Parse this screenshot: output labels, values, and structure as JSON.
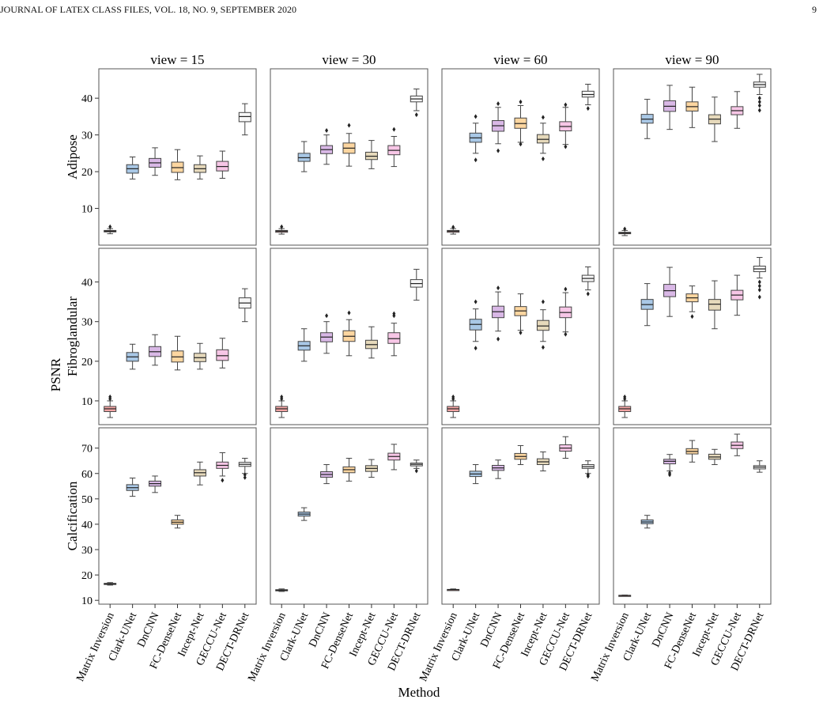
{
  "header": {
    "left": "JOURNAL OF LATEX CLASS FILES, VOL. 18, NO. 9, SEPTEMBER 2020",
    "page": "9"
  },
  "chart_data": {
    "type": "box",
    "x_label": "Method",
    "y_label_outer": "PSNR",
    "methods": [
      "Matrix Inversion",
      "Clark-UNet",
      "DnCNN",
      "FC-DenseNet",
      "Incept-Net",
      "GECCU-Net",
      "DECT-DRNet"
    ],
    "colors": {
      "Matrix Inversion": "#f4a6a6",
      "Clark-UNet": "#a9c8e6",
      "DnCNN": "#d9b8e6",
      "FC-DenseNet": "#fdd6a0",
      "Incept-Net": "#e6d9bb",
      "GECCU-Net": "#f7c6e6",
      "DECT-DRNet": "#f7f7f7"
    },
    "columns": [
      "view = 15",
      "view = 30",
      "view = 60",
      "view = 90"
    ],
    "rows": [
      {
        "label": "Adipose",
        "ylim": [
          0,
          48
        ],
        "yticks": [
          10,
          20,
          30,
          40
        ],
        "panels": [
          [
            [
              3.1,
              3.6,
              3.8,
              4.0,
              4.5,
              [
                5.0
              ]
            ],
            [
              18,
              19.6,
              20.8,
              21.9,
              24,
              []
            ],
            [
              19,
              21.2,
              22.4,
              23.6,
              26.5,
              []
            ],
            [
              17.8,
              19.8,
              21.1,
              22.6,
              26,
              []
            ],
            [
              18,
              19.8,
              20.8,
              21.9,
              24.3,
              []
            ],
            [
              18.2,
              20.2,
              21.4,
              22.8,
              25.6,
              []
            ],
            [
              30,
              33.6,
              35,
              36.1,
              38.5,
              []
            ]
          ],
          [
            [
              3.0,
              3.5,
              3.8,
              4.0,
              4.5,
              [
                5.0
              ]
            ],
            [
              20,
              22.8,
              23.8,
              25,
              28.2,
              []
            ],
            [
              22,
              24.9,
              26,
              27.1,
              30,
              [
                31.2
              ]
            ],
            [
              21.5,
              25,
              26.4,
              27.8,
              30.4,
              [
                32.6
              ]
            ],
            [
              20.8,
              23.3,
              24.2,
              25.3,
              28.5,
              []
            ],
            [
              21.4,
              24.6,
              25.8,
              27.1,
              29.6,
              [
                31.5
              ]
            ],
            [
              36.6,
              39,
              39.8,
              40.6,
              42.5,
              [
                35.5
              ]
            ]
          ],
          [
            [
              3.0,
              3.5,
              3.8,
              4.0,
              4.5,
              [
                4.9
              ]
            ],
            [
              25,
              28,
              29.2,
              30.5,
              33.2,
              [
                23.2,
                35
              ]
            ],
            [
              27.6,
              31,
              32.5,
              33.9,
              37.5,
              [
                25.7,
                38.5
              ]
            ],
            [
              28,
              31.8,
              33.1,
              34.6,
              38,
              [
                27.5,
                39
              ]
            ],
            [
              25,
              27.8,
              28.8,
              30.1,
              33.2,
              [
                23.5,
                34.8
              ]
            ],
            [
              27.4,
              31.1,
              32.3,
              33.6,
              37.5,
              [
                26.8,
                38.2
              ]
            ],
            [
              38.2,
              40.3,
              41,
              41.9,
              43.8,
              [
                37.2
              ]
            ]
          ],
          [
            [
              2.6,
              3.1,
              3.3,
              3.5,
              4.0,
              [
                4.4
              ]
            ],
            [
              29,
              33.2,
              34.3,
              35.6,
              39.7,
              []
            ],
            [
              31.5,
              36.4,
              37.8,
              39.3,
              43.5,
              []
            ],
            [
              32,
              36.5,
              37.7,
              39,
              43,
              []
            ],
            [
              28.2,
              33,
              34.3,
              35.5,
              40.3,
              []
            ],
            [
              31.8,
              35.5,
              36.6,
              37.7,
              41.8,
              []
            ],
            [
              41,
              43,
              43.7,
              44.4,
              46.5,
              [
                40,
                39,
                38,
                36.7
              ]
            ]
          ]
        ]
      },
      {
        "label": "Fibroglandular",
        "ylim": [
          4,
          48.5
        ],
        "yticks": [
          10,
          20,
          30,
          40
        ],
        "panels": [
          [
            [
              5.8,
              7.3,
              8.0,
              8.6,
              10,
              [
                10.5,
                11
              ]
            ],
            [
              18,
              20,
              21.1,
              22.2,
              24.3,
              []
            ],
            [
              19,
              21.2,
              22.4,
              23.7,
              26.7,
              []
            ],
            [
              17.8,
              19.8,
              21.1,
              22.6,
              26.3,
              []
            ],
            [
              18,
              19.9,
              20.9,
              22,
              24.5,
              []
            ],
            [
              18.3,
              20.2,
              21.4,
              22.9,
              25.8,
              []
            ],
            [
              30,
              33.4,
              34.7,
              36,
              38.3,
              []
            ]
          ],
          [
            [
              5.8,
              7.3,
              8.0,
              8.6,
              10,
              [
                10.5,
                11
              ]
            ],
            [
              20,
              22.8,
              23.9,
              25,
              28.2,
              []
            ],
            [
              22,
              24.9,
              26.1,
              27.2,
              30,
              [
                31.5
              ]
            ],
            [
              21.4,
              25,
              26.3,
              27.7,
              30.5,
              [
                32.2
              ]
            ],
            [
              20.8,
              23.2,
              24.2,
              25.3,
              28.7,
              []
            ],
            [
              21.4,
              24.5,
              25.7,
              27.2,
              29.6,
              [
                31.5,
                32
              ]
            ],
            [
              35.4,
              38.7,
              39.6,
              40.6,
              43.2,
              []
            ]
          ],
          [
            [
              5.8,
              7.3,
              8.0,
              8.6,
              10,
              [
                10.5,
                11
              ]
            ],
            [
              25,
              27.9,
              29.3,
              30.6,
              33.2,
              [
                23.3,
                35
              ]
            ],
            [
              27.6,
              31,
              32.5,
              33.9,
              37.5,
              [
                25.6,
                38.5
              ]
            ],
            [
              27.8,
              31.5,
              32.7,
              33.8,
              37,
              [
                27.2
              ]
            ],
            [
              25,
              27.8,
              28.9,
              30.3,
              33,
              [
                23.5,
                35
              ]
            ],
            [
              27.4,
              31,
              32.3,
              33.7,
              37.3,
              [
                26.8,
                38.2
              ]
            ],
            [
              38,
              40.1,
              40.9,
              41.7,
              43.8,
              [
                37
              ]
            ]
          ],
          [
            [
              5.8,
              7.3,
              8.0,
              8.6,
              10,
              [
                10.5,
                11
              ]
            ],
            [
              29,
              33.1,
              34.3,
              35.6,
              39.6,
              []
            ],
            [
              31.3,
              36.3,
              37.8,
              39.4,
              43.7,
              []
            ],
            [
              32.5,
              35,
              36,
              37,
              39,
              [
                31.3
              ]
            ],
            [
              28.2,
              32.9,
              34.4,
              35.6,
              40.3,
              []
            ],
            [
              31.6,
              35.5,
              36.7,
              37.9,
              41.7,
              []
            ],
            [
              41,
              42.6,
              43.3,
              44,
              46.2,
              [
                40,
                39,
                38,
                36.2
              ]
            ]
          ]
        ]
      },
      {
        "label": "Calcification",
        "ylim": [
          8.5,
          78
        ],
        "yticks": [
          10,
          20,
          30,
          40,
          50,
          60,
          70
        ],
        "panels": [
          [
            [
              16,
              16.3,
              16.5,
              16.7,
              17,
              []
            ],
            [
              51,
              53.3,
              54.4,
              55.6,
              58.2,
              []
            ],
            [
              52.5,
              55,
              56,
              57,
              59,
              []
            ],
            [
              38.5,
              40,
              40.8,
              41.7,
              43.5,
              []
            ],
            [
              55.5,
              59,
              60.3,
              61.5,
              64.5,
              []
            ],
            [
              59,
              62,
              63.2,
              64.5,
              68.2,
              [
                57.3
              ]
            ],
            [
              60,
              62.8,
              63.6,
              64.4,
              66,
              [
                59.5,
                58.4
              ]
            ]
          ],
          [
            [
              13.5,
              13.8,
              14.0,
              14.2,
              14.5,
              []
            ],
            [
              41.5,
              43.2,
              44,
              44.8,
              46.5,
              []
            ],
            [
              56,
              58.5,
              59.6,
              60.7,
              63.5,
              []
            ],
            [
              57,
              60.3,
              61.5,
              62.6,
              66,
              []
            ],
            [
              58.5,
              60.8,
              62,
              63.1,
              65.5,
              []
            ],
            [
              61.5,
              65.3,
              66.7,
              68,
              71.5,
              []
            ],
            [
              62,
              63,
              63.6,
              64.1,
              65.3,
              [
                61
              ]
            ]
          ],
          [
            [
              14.0,
              14.1,
              14.2,
              14.3,
              14.5,
              []
            ],
            [
              56,
              58.8,
              59.8,
              60.9,
              63.5,
              []
            ],
            [
              58,
              61.2,
              62.2,
              63.2,
              65.3,
              []
            ],
            [
              63.5,
              65.6,
              66.7,
              67.9,
              71,
              []
            ],
            [
              61,
              63.5,
              64.6,
              65.8,
              68.5,
              []
            ],
            [
              66,
              68.8,
              70,
              71.3,
              74.5,
              []
            ],
            [
              60,
              62,
              62.7,
              63.5,
              65,
              [
                59.5,
                58.9
              ]
            ]
          ],
          [
            [
              11.7,
              11.8,
              11.9,
              12.0,
              12.1,
              []
            ],
            [
              38.5,
              40.2,
              40.9,
              41.7,
              43.5,
              []
            ],
            [
              61,
              63.8,
              64.8,
              65.6,
              67.5,
              [
                60.2,
                59.5
              ]
            ],
            [
              64.5,
              67.7,
              68.7,
              69.8,
              73,
              []
            ],
            [
              63.5,
              65.6,
              66.5,
              67.6,
              69.5,
              []
            ],
            [
              67,
              69.8,
              71.1,
              72.4,
              75.5,
              []
            ],
            [
              60.5,
              61.8,
              62.5,
              63.1,
              65,
              []
            ]
          ]
        ]
      }
    ],
    "box_encoding": "each box = [whisker_low, q1, median, q3, whisker_high, outliers]"
  }
}
